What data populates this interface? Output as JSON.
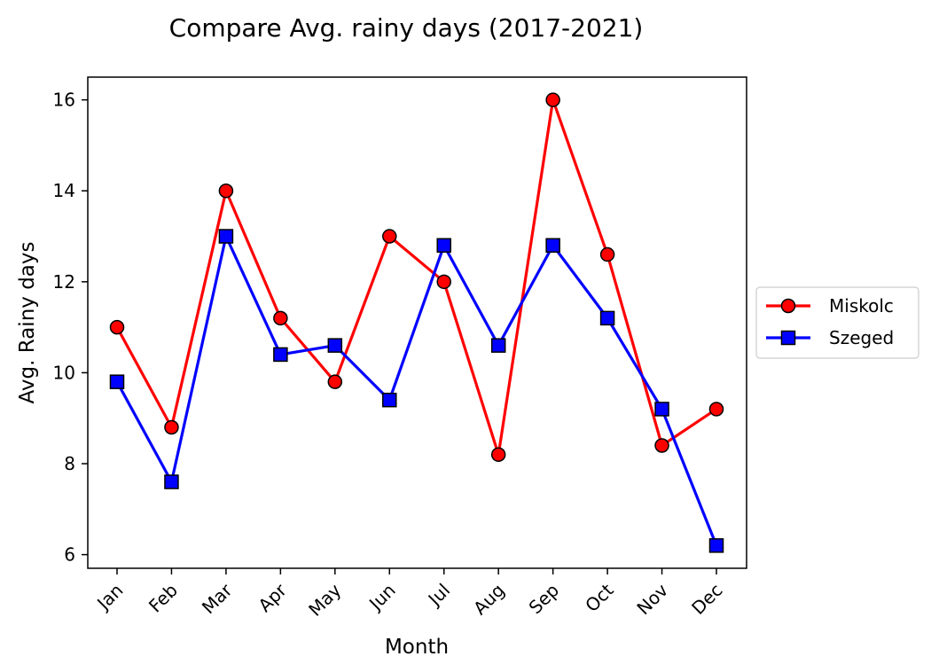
{
  "chart_data": {
    "type": "line",
    "title": "Compare Avg. rainy days (2017-2021)",
    "xlabel": "Month",
    "ylabel": "Avg. Rainy days",
    "categories": [
      "Jan",
      "Feb",
      "Mar",
      "Apr",
      "May",
      "Jun",
      "Jul",
      "Aug",
      "Sep",
      "Oct",
      "Nov",
      "Dec"
    ],
    "ylim": [
      5.7,
      16.5
    ],
    "yticks": [
      "6",
      "8",
      "10",
      "12",
      "14",
      "16"
    ],
    "grid": false,
    "legend_position": "right, outside",
    "series": [
      {
        "name": "Miskolc",
        "color": "#ff0000",
        "marker": "circle",
        "values": [
          11.0,
          8.8,
          14.0,
          11.2,
          9.8,
          13.0,
          12.0,
          8.2,
          16.0,
          12.6,
          8.4,
          9.2
        ]
      },
      {
        "name": "Szeged",
        "color": "#0000ff",
        "marker": "square",
        "values": [
          9.8,
          7.6,
          13.0,
          10.4,
          10.6,
          9.4,
          12.8,
          10.6,
          12.8,
          11.2,
          9.2,
          6.2
        ]
      }
    ]
  }
}
